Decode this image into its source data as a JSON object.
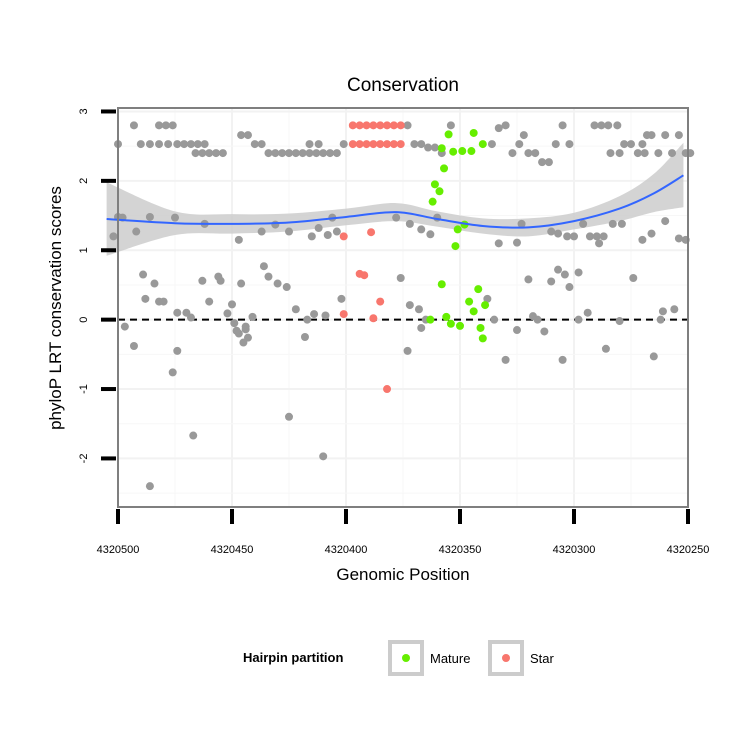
{
  "chart_data": {
    "type": "scatter",
    "title": "Conservation",
    "xlabel": "Genomic Position",
    "ylabel": "phyloP LRT conservation scores",
    "xlim": [
      4320500,
      4320250
    ],
    "x_reversed": true,
    "ylim": [
      -2.7,
      3.05
    ],
    "x_ticks": [
      4320500,
      4320450,
      4320400,
      4320350,
      4320300,
      4320250
    ],
    "x_tick_labels": [
      "4320500",
      "4320450",
      "4320400",
      "4320350",
      "4320300",
      "4320250"
    ],
    "y_ticks": [
      3,
      2,
      1,
      0,
      -1,
      -2
    ],
    "y_tick_labels": [
      "3",
      "2",
      "1",
      "0",
      "-1",
      "-2"
    ],
    "grid": true,
    "reference_line": {
      "y": 0,
      "style": "dashed",
      "color": "#000000"
    },
    "colors": {
      "other": "#999999",
      "Mature": "#66ee00",
      "Star": "#f8766d",
      "smooth_line": "#3366ff",
      "ribbon": "#cccccc"
    },
    "legend": {
      "title": "Hairpin partition",
      "position": "bottom",
      "entries": [
        {
          "label": "Mature",
          "color": "#66ee00"
        },
        {
          "label": "Star",
          "color": "#f8766d"
        }
      ]
    },
    "smooth": {
      "x": [
        4320505,
        4320475,
        4320450,
        4320425,
        4320400,
        4320378,
        4320360,
        4320340,
        4320320,
        4320300,
        4320280,
        4320265,
        4320252
      ],
      "y": [
        1.45,
        1.39,
        1.38,
        1.4,
        1.48,
        1.55,
        1.45,
        1.35,
        1.33,
        1.42,
        1.6,
        1.82,
        2.08
      ],
      "lower": [
        0.92,
        1.22,
        1.24,
        1.27,
        1.36,
        1.42,
        1.34,
        1.24,
        1.2,
        1.3,
        1.42,
        1.55,
        1.62
      ],
      "upper": [
        1.98,
        1.56,
        1.52,
        1.53,
        1.6,
        1.68,
        1.56,
        1.46,
        1.46,
        1.54,
        1.78,
        2.1,
        2.55
      ]
    },
    "series": [
      {
        "name": "Mature",
        "points": [
          [
            4320358,
            2.47
          ],
          [
            4320355,
            2.67
          ],
          [
            4320353,
            2.42
          ],
          [
            4320349,
            2.43
          ],
          [
            4320345,
            2.43
          ],
          [
            4320344,
            2.69
          ],
          [
            4320340,
            2.53
          ],
          [
            4320357,
            2.18
          ],
          [
            4320359,
            1.85
          ],
          [
            4320362,
            1.7
          ],
          [
            4320361,
            1.95
          ],
          [
            4320351,
            1.3
          ],
          [
            4320348,
            1.37
          ],
          [
            4320352,
            1.06
          ],
          [
            4320358,
            0.51
          ],
          [
            4320342,
            0.44
          ],
          [
            4320346,
            0.26
          ],
          [
            4320339,
            0.21
          ],
          [
            4320344,
            0.12
          ],
          [
            4320363,
            0.0
          ],
          [
            4320356,
            0.04
          ],
          [
            4320354,
            -0.06
          ],
          [
            4320350,
            -0.09
          ],
          [
            4320341,
            -0.12
          ],
          [
            4320340,
            -0.27
          ]
        ]
      },
      {
        "name": "Star",
        "points": [
          [
            4320397,
            2.8
          ],
          [
            4320394,
            2.8
          ],
          [
            4320391,
            2.8
          ],
          [
            4320388,
            2.8
          ],
          [
            4320385,
            2.8
          ],
          [
            4320382,
            2.8
          ],
          [
            4320379,
            2.8
          ],
          [
            4320376,
            2.8
          ],
          [
            4320397,
            2.53
          ],
          [
            4320394,
            2.53
          ],
          [
            4320391,
            2.53
          ],
          [
            4320388,
            2.53
          ],
          [
            4320385,
            2.53
          ],
          [
            4320382,
            2.53
          ],
          [
            4320379,
            2.53
          ],
          [
            4320376,
            2.53
          ],
          [
            4320401,
            1.2
          ],
          [
            4320389,
            1.26
          ],
          [
            4320394,
            0.66
          ],
          [
            4320392,
            0.64
          ],
          [
            4320385,
            0.26
          ],
          [
            4320401,
            0.08
          ],
          [
            4320388,
            0.02
          ],
          [
            4320382,
            -1.0
          ]
        ]
      },
      {
        "name": "",
        "points": [
          [
            4320500,
            2.53
          ],
          [
            4320493,
            2.8
          ],
          [
            4320490,
            2.53
          ],
          [
            4320486,
            2.53
          ],
          [
            4320482,
            2.8
          ],
          [
            4320479,
            2.8
          ],
          [
            4320476,
            2.8
          ],
          [
            4320482,
            2.53
          ],
          [
            4320478,
            2.53
          ],
          [
            4320474,
            2.53
          ],
          [
            4320471,
            2.53
          ],
          [
            4320468,
            2.53
          ],
          [
            4320465,
            2.53
          ],
          [
            4320462,
            2.53
          ],
          [
            4320466,
            2.4
          ],
          [
            4320463,
            2.4
          ],
          [
            4320460,
            2.4
          ],
          [
            4320457,
            2.4
          ],
          [
            4320454,
            2.4
          ],
          [
            4320446,
            2.66
          ],
          [
            4320443,
            2.66
          ],
          [
            4320440,
            2.53
          ],
          [
            4320437,
            2.53
          ],
          [
            4320434,
            2.4
          ],
          [
            4320431,
            2.4
          ],
          [
            4320428,
            2.4
          ],
          [
            4320425,
            2.4
          ],
          [
            4320422,
            2.4
          ],
          [
            4320419,
            2.4
          ],
          [
            4320416,
            2.4
          ],
          [
            4320413,
            2.4
          ],
          [
            4320410,
            2.4
          ],
          [
            4320407,
            2.4
          ],
          [
            4320404,
            2.4
          ],
          [
            4320416,
            2.53
          ],
          [
            4320412,
            2.53
          ],
          [
            4320401,
            2.53
          ],
          [
            4320373,
            2.8
          ],
          [
            4320370,
            2.53
          ],
          [
            4320367,
            2.53
          ],
          [
            4320364,
            2.48
          ],
          [
            4320361,
            2.48
          ],
          [
            4320358,
            2.4
          ],
          [
            4320354,
            2.8
          ],
          [
            4320336,
            2.53
          ],
          [
            4320333,
            2.76
          ],
          [
            4320330,
            2.8
          ],
          [
            4320327,
            2.4
          ],
          [
            4320324,
            2.53
          ],
          [
            4320322,
            2.66
          ],
          [
            4320320,
            2.4
          ],
          [
            4320317,
            2.4
          ],
          [
            4320314,
            2.27
          ],
          [
            4320311,
            2.27
          ],
          [
            4320308,
            2.53
          ],
          [
            4320305,
            2.8
          ],
          [
            4320302,
            2.53
          ],
          [
            4320291,
            2.8
          ],
          [
            4320288,
            2.8
          ],
          [
            4320285,
            2.8
          ],
          [
            4320281,
            2.8
          ],
          [
            4320278,
            2.53
          ],
          [
            4320275,
            2.53
          ],
          [
            4320272,
            2.4
          ],
          [
            4320269,
            2.4
          ],
          [
            4320266,
            2.66
          ],
          [
            4320263,
            2.4
          ],
          [
            4320260,
            2.66
          ],
          [
            4320257,
            2.4
          ],
          [
            4320254,
            2.66
          ],
          [
            4320251,
            2.4
          ],
          [
            4320249,
            2.4
          ],
          [
            4320268,
            2.66
          ],
          [
            4320270,
            2.53
          ],
          [
            4320280,
            2.4
          ],
          [
            4320284,
            2.4
          ],
          [
            4320498,
            1.47
          ],
          [
            4320500,
            1.48
          ],
          [
            4320502,
            1.2
          ],
          [
            4320492,
            1.27
          ],
          [
            4320486,
            1.48
          ],
          [
            4320475,
            1.47
          ],
          [
            4320462,
            1.38
          ],
          [
            4320447,
            1.15
          ],
          [
            4320437,
            1.27
          ],
          [
            4320431,
            1.37
          ],
          [
            4320425,
            1.27
          ],
          [
            4320415,
            1.2
          ],
          [
            4320412,
            1.32
          ],
          [
            4320406,
            1.47
          ],
          [
            4320404,
            1.27
          ],
          [
            4320408,
            1.22
          ],
          [
            4320378,
            1.47
          ],
          [
            4320372,
            1.38
          ],
          [
            4320367,
            1.3
          ],
          [
            4320363,
            1.23
          ],
          [
            4320360,
            1.47
          ],
          [
            4320333,
            1.1
          ],
          [
            4320325,
            1.11
          ],
          [
            4320323,
            1.38
          ],
          [
            4320310,
            1.27
          ],
          [
            4320307,
            1.24
          ],
          [
            4320303,
            1.2
          ],
          [
            4320300,
            1.2
          ],
          [
            4320296,
            1.38
          ],
          [
            4320293,
            1.2
          ],
          [
            4320290,
            1.2
          ],
          [
            4320287,
            1.2
          ],
          [
            4320283,
            1.38
          ],
          [
            4320279,
            1.38
          ],
          [
            4320270,
            1.15
          ],
          [
            4320266,
            1.24
          ],
          [
            4320260,
            1.42
          ],
          [
            4320251,
            1.15
          ],
          [
            4320254,
            1.17
          ],
          [
            4320289,
            1.1
          ],
          [
            4320489,
            0.65
          ],
          [
            4320484,
            0.52
          ],
          [
            4320480,
            0.26
          ],
          [
            4320488,
            0.3
          ],
          [
            4320482,
            0.26
          ],
          [
            4320474,
            0.1
          ],
          [
            4320470,
            0.1
          ],
          [
            4320468,
            0.03
          ],
          [
            4320463,
            0.56
          ],
          [
            4320460,
            0.26
          ],
          [
            4320456,
            0.62
          ],
          [
            4320455,
            0.56
          ],
          [
            4320452,
            0.09
          ],
          [
            4320450,
            0.22
          ],
          [
            4320449,
            -0.05
          ],
          [
            4320447,
            -0.2
          ],
          [
            4320446,
            0.52
          ],
          [
            4320443,
            -0.26
          ],
          [
            4320444,
            -0.14
          ],
          [
            4320441,
            0.04
          ],
          [
            4320436,
            0.77
          ],
          [
            4320434,
            0.62
          ],
          [
            4320430,
            0.52
          ],
          [
            4320426,
            0.47
          ],
          [
            4320422,
            0.15
          ],
          [
            4320418,
            -0.25
          ],
          [
            4320417,
            0.0
          ],
          [
            4320414,
            0.08
          ],
          [
            4320409,
            0.06
          ],
          [
            4320402,
            0.3
          ],
          [
            4320372,
            0.21
          ],
          [
            4320368,
            0.15
          ],
          [
            4320376,
            0.6
          ],
          [
            4320365,
            0.0
          ],
          [
            4320373,
            -0.45
          ],
          [
            4320367,
            -0.12
          ],
          [
            4320330,
            -0.58
          ],
          [
            4320325,
            -0.15
          ],
          [
            4320318,
            0.05
          ],
          [
            4320313,
            -0.17
          ],
          [
            4320307,
            0.72
          ],
          [
            4320304,
            0.65
          ],
          [
            4320302,
            0.47
          ],
          [
            4320298,
            0.0
          ],
          [
            4320305,
            -0.58
          ],
          [
            4320294,
            0.1
          ],
          [
            4320286,
            -0.42
          ],
          [
            4320280,
            -0.02
          ],
          [
            4320261,
            0.12
          ],
          [
            4320256,
            0.15
          ],
          [
            4320262,
            0.0
          ],
          [
            4320265,
            -0.53
          ],
          [
            4320310,
            0.55
          ],
          [
            4320320,
            0.58
          ],
          [
            4320338,
            0.3
          ],
          [
            4320335,
            0.0
          ],
          [
            4320316,
            0.0
          ],
          [
            4320274,
            0.6
          ],
          [
            4320298,
            0.68
          ],
          [
            4320497,
            -0.1
          ],
          [
            4320493,
            -0.38
          ],
          [
            4320474,
            -0.45
          ],
          [
            4320476,
            -0.76
          ],
          [
            4320467,
            -1.67
          ],
          [
            4320448,
            -0.16
          ],
          [
            4320445,
            -0.33
          ],
          [
            4320444,
            -0.1
          ],
          [
            4320425,
            -1.4
          ],
          [
            4320410,
            -1.97
          ],
          [
            4320486,
            -2.4
          ]
        ]
      }
    ]
  }
}
